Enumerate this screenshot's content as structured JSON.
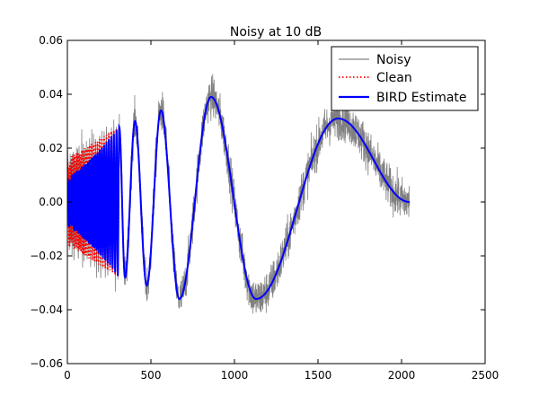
{
  "chart_data": {
    "type": "line",
    "title": "Noisy at 10 dB",
    "xlabel": "",
    "ylabel": "",
    "xlim": [
      0,
      2500
    ],
    "ylim": [
      -0.06,
      0.06
    ],
    "x_ticks": [
      0,
      500,
      1000,
      1500,
      2000,
      2500
    ],
    "x_tick_labels": [
      "0",
      "500",
      "1000",
      "1500",
      "2000",
      "2500"
    ],
    "y_ticks": [
      0.06,
      0.04,
      0.02,
      0.0,
      -0.02,
      -0.04,
      -0.06
    ],
    "y_tick_labels": [
      "0.06",
      "0.04",
      "0.02",
      "0.00",
      "−0.02",
      "−0.04",
      "−0.06"
    ],
    "legend_position": "top-right",
    "series": [
      {
        "name": "Noisy",
        "color": "#808080",
        "style": "solid",
        "description": "clean signal plus noise at 10 dB SNR, x from 0 to 2048"
      },
      {
        "name": "Clean",
        "color": "#ff0000",
        "style": "dotted"
      },
      {
        "name": "BIRD Estimate",
        "color": "#0000ff",
        "style": "solid"
      }
    ],
    "signal_extrema": [
      {
        "x": 310,
        "y": 0.028
      },
      {
        "x": 345,
        "y": -0.028
      },
      {
        "x": 405,
        "y": 0.03
      },
      {
        "x": 475,
        "y": -0.031
      },
      {
        "x": 560,
        "y": 0.034
      },
      {
        "x": 670,
        "y": -0.036
      },
      {
        "x": 860,
        "y": 0.039
      },
      {
        "x": 1130,
        "y": -0.036
      },
      {
        "x": 1620,
        "y": 0.031
      },
      {
        "x": 2048,
        "y": 0.0
      }
    ]
  }
}
